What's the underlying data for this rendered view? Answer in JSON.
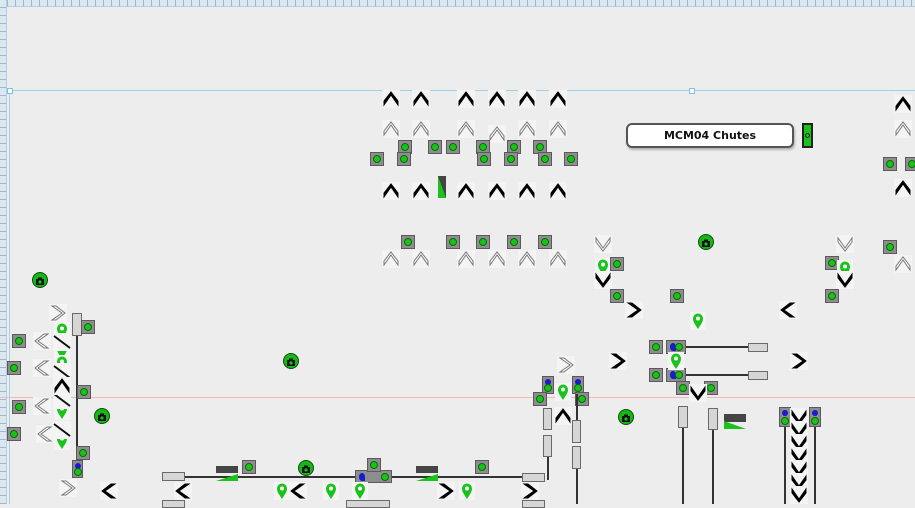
{
  "panel": {
    "title": "MCM04 Chutes",
    "status": "running"
  },
  "icons": {
    "chevron": "chevron-icon",
    "status_light": "status-light-icon",
    "location_pin": "location-pin-icon",
    "camera": "camera-icon",
    "motor": "motor-icon"
  },
  "colors": {
    "background": "#ededed",
    "status_green": "#19c319",
    "motor_blue": "#1a1ad0",
    "guide_blue": "#9ed0ea",
    "guide_red": "#f0b8b8"
  }
}
